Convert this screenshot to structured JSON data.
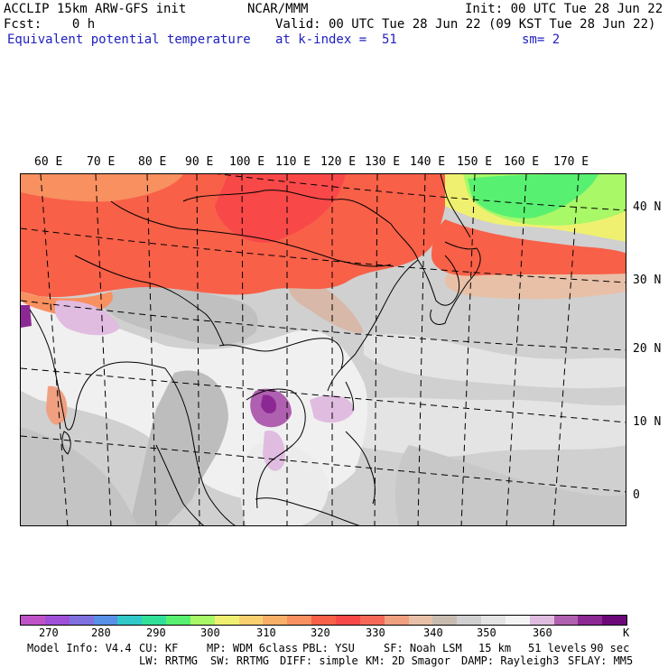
{
  "header": {
    "left_line1": "ACCLIP 15km ARW-GFS init",
    "center_line1": "NCAR/MMM",
    "right_line1": "Init: 00 UTC Tue 28 Jun 22",
    "left_line2": "Fcst:    0 h",
    "right_line2": "Valid: 00 UTC Tue 28 Jun 22 (09 KST Tue 28 Jun 22)",
    "field_name": "Equivalent potential temperature",
    "level": "at k-index =  51",
    "smoothing": "sm= 2"
  },
  "map": {
    "longitude_labels": [
      "60 E",
      "70 E",
      "80 E",
      "90 E",
      "100 E",
      "110 E",
      "120 E",
      "130 E",
      "140 E",
      "150 E",
      "160 E",
      "170 E"
    ],
    "latitude_labels": [
      "40 N",
      "30 N",
      "20 N",
      "10 N",
      "0"
    ]
  },
  "colorbar": {
    "colors": [
      "#c052c8",
      "#a050d8",
      "#8070e0",
      "#5890e8",
      "#30c8c8",
      "#30e098",
      "#58f070",
      "#a8f868",
      "#f0f070",
      "#f8d070",
      "#f8b068",
      "#f89060",
      "#f86048",
      "#f84848",
      "#f86858",
      "#f0a080",
      "#e8c0a8",
      "#c8bcb0",
      "#d0d0d0",
      "#e4e4e4",
      "#f4f4f4",
      "#e0bce0",
      "#b060b0",
      "#8c2894",
      "#6c0878"
    ],
    "tick_labels": [
      "270",
      "280",
      "290",
      "300",
      "310",
      "320",
      "330",
      "340",
      "350",
      "360"
    ],
    "unit": "K"
  },
  "footer": {
    "line1": [
      "Model Info: V4.4",
      "CU: KF",
      "MP: WDM 6class",
      "PBL: YSU",
      "SF: Noah LSM",
      "15 km",
      "51 levels",
      "90 sec"
    ],
    "line2": [
      "LW: RRTMG",
      "SW: RRTMG",
      "DIFF: simple",
      "KM: 2D Smagor",
      "DAMP: Rayleigh3",
      "SFLAY: MM5"
    ]
  }
}
